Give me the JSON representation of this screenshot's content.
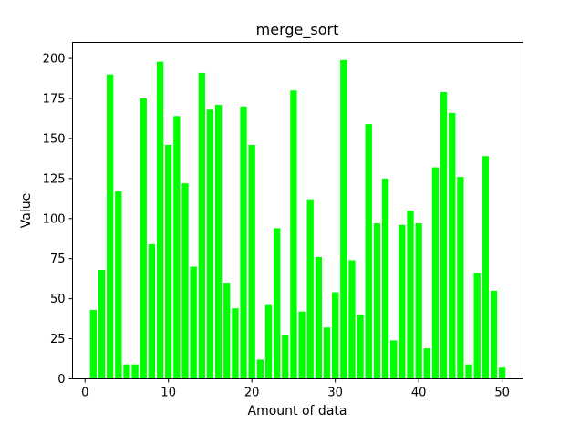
{
  "chart_data": {
    "type": "bar",
    "title": "merge_sort",
    "xlabel": "Amount of data",
    "ylabel": "Value",
    "xlim": [
      -1.5,
      52.5
    ],
    "ylim": [
      0,
      210
    ],
    "xticks": [
      0,
      10,
      20,
      30,
      40,
      50
    ],
    "yticks": [
      0,
      25,
      50,
      75,
      100,
      125,
      150,
      175,
      200
    ],
    "bar_color": "#00ff00",
    "grid": false,
    "legend": "none",
    "x": [
      1,
      2,
      3,
      4,
      5,
      6,
      7,
      8,
      9,
      10,
      11,
      12,
      13,
      14,
      15,
      16,
      17,
      18,
      19,
      20,
      21,
      22,
      23,
      24,
      25,
      26,
      27,
      28,
      29,
      30,
      31,
      32,
      33,
      34,
      35,
      36,
      37,
      38,
      39,
      40,
      41,
      42,
      43,
      44,
      45,
      46,
      47,
      48,
      49,
      50
    ],
    "values": [
      43,
      68,
      190,
      117,
      9,
      9,
      175,
      84,
      198,
      146,
      164,
      122,
      70,
      191,
      168,
      171,
      60,
      44,
      170,
      146,
      12,
      46,
      94,
      27,
      180,
      42,
      112,
      76,
      32,
      54,
      199,
      74,
      40,
      159,
      97,
      125,
      24,
      96,
      105,
      97,
      19,
      132,
      179,
      166,
      126,
      9,
      66,
      139,
      55,
      7
    ]
  }
}
